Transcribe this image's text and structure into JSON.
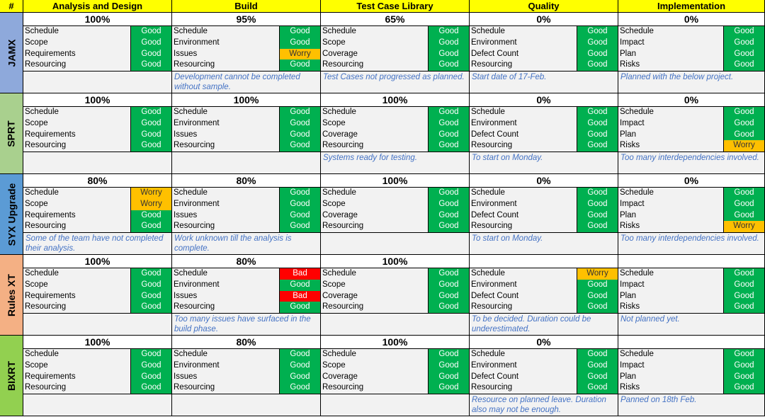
{
  "header": {
    "corner": "#",
    "phases": [
      "Analysis and Design",
      "Build",
      "Test Case Library",
      "Quality",
      "Implementation"
    ]
  },
  "colors": {
    "good": "#00b050",
    "worry": "#ffc000",
    "bad": "#ff0000",
    "header": "#ffff00",
    "note_text": "#4472c4"
  },
  "metric_labels": {
    "analysis": [
      "Schedule",
      "Scope",
      "Requirements",
      "Resourcing"
    ],
    "build": [
      "Schedule",
      "Environment",
      "Issues",
      "Resourcing"
    ],
    "test": [
      "Schedule",
      "Scope",
      "Coverage",
      "Resourcing"
    ],
    "quality": [
      "Schedule",
      "Environment",
      "Defect Count",
      "Resourcing"
    ],
    "implementation": [
      "Schedule",
      "Impact",
      "Plan",
      "Risks"
    ]
  },
  "projects": [
    {
      "name": "JAMX",
      "color": "#8ea9db",
      "cells": [
        {
          "pct": "100%",
          "statuses": [
            "Good",
            "Good",
            "Good",
            "Good"
          ],
          "note": ""
        },
        {
          "pct": "95%",
          "statuses": [
            "Good",
            "Good",
            "Worry",
            "Good"
          ],
          "note": "Development cannot be completed without sample."
        },
        {
          "pct": "65%",
          "statuses": [
            "Good",
            "Good",
            "Good",
            "Good"
          ],
          "note": "Test Cases not progressed as planned."
        },
        {
          "pct": "0%",
          "statuses": [
            "Good",
            "Good",
            "Good",
            "Good"
          ],
          "note": "Start date of 17-Feb."
        },
        {
          "pct": "0%",
          "statuses": [
            "Good",
            "Good",
            "Good",
            "Good"
          ],
          "note": "Planned with the below project."
        }
      ]
    },
    {
      "name": "SPRT",
      "color": "#a9d08e",
      "cells": [
        {
          "pct": "100%",
          "statuses": [
            "Good",
            "Good",
            "Good",
            "Good"
          ],
          "note": ""
        },
        {
          "pct": "100%",
          "statuses": [
            "Good",
            "Good",
            "Good",
            "Good"
          ],
          "note": ""
        },
        {
          "pct": "100%",
          "statuses": [
            "Good",
            "Good",
            "Good",
            "Good"
          ],
          "note": "Systems ready for testing."
        },
        {
          "pct": "0%",
          "statuses": [
            "Good",
            "Good",
            "Good",
            "Good"
          ],
          "note": "To start on Monday."
        },
        {
          "pct": "0%",
          "statuses": [
            "Good",
            "Good",
            "Good",
            "Worry"
          ],
          "note": "Too many interdependencies involved."
        }
      ]
    },
    {
      "name": "SYX Upgrade",
      "color": "#5b9bd5",
      "cells": [
        {
          "pct": "80%",
          "statuses": [
            "Worry",
            "Worry",
            "Good",
            "Good"
          ],
          "note": "Some of the team have not completed their analysis."
        },
        {
          "pct": "80%",
          "statuses": [
            "Good",
            "Good",
            "Good",
            "Good"
          ],
          "note": "Work unknown till the analysis is complete."
        },
        {
          "pct": "100%",
          "statuses": [
            "Good",
            "Good",
            "Good",
            "Good"
          ],
          "note": ""
        },
        {
          "pct": "0%",
          "statuses": [
            "Good",
            "Good",
            "Good",
            "Good"
          ],
          "note": "To start on Monday."
        },
        {
          "pct": "0%",
          "statuses": [
            "Good",
            "Good",
            "Good",
            "Worry"
          ],
          "note": "Too many interdependencies involved."
        }
      ]
    },
    {
      "name": "Rules XT",
      "color": "#f4b084",
      "cells": [
        {
          "pct": "100%",
          "statuses": [
            "Good",
            "Good",
            "Good",
            "Good"
          ],
          "note": ""
        },
        {
          "pct": "80%",
          "statuses": [
            "Bad",
            "Good",
            "Bad",
            "Good"
          ],
          "note": "Too many issues have surfaced in the build phase."
        },
        {
          "pct": "100%",
          "statuses": [
            "Good",
            "Good",
            "Good",
            "Good"
          ],
          "note": ""
        },
        {
          "pct": "",
          "statuses": [
            "Worry",
            "Good",
            "Good",
            "Good"
          ],
          "note": "To be decided. Duration could be underestimated."
        },
        {
          "pct": "",
          "statuses": [
            "Good",
            "Good",
            "Good",
            "Good"
          ],
          "note": "Not planned yet."
        }
      ]
    },
    {
      "name": "BIXRT",
      "color": "#92d050",
      "cells": [
        {
          "pct": "100%",
          "statuses": [
            "Good",
            "Good",
            "Good",
            "Good"
          ],
          "note": ""
        },
        {
          "pct": "80%",
          "statuses": [
            "Good",
            "Good",
            "Good",
            "Good"
          ],
          "note": ""
        },
        {
          "pct": "100%",
          "statuses": [
            "Good",
            "Good",
            "Good",
            "Good"
          ],
          "note": ""
        },
        {
          "pct": "0%",
          "statuses": [
            "Good",
            "Good",
            "Good",
            "Good"
          ],
          "note": "Resource on planned leave. Duration also may not be enough."
        },
        {
          "pct": "",
          "statuses": [
            "Good",
            "Good",
            "Good",
            "Good"
          ],
          "note": "Panned on 18th Feb."
        }
      ]
    }
  ]
}
